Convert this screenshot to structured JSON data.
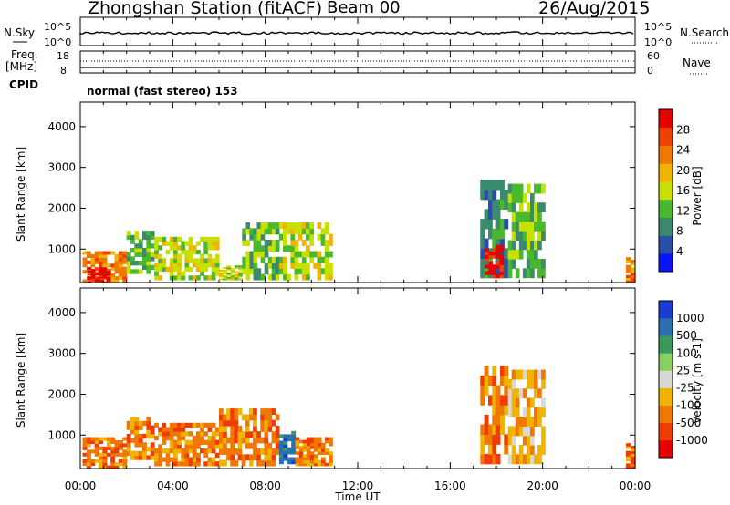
{
  "header": {
    "station": "Zhongshan Station (fitACF)",
    "beam": "Beam 00",
    "date": "26/Aug/2015"
  },
  "strip_labels": {
    "nsky": "N.Sky",
    "nsearch": "N.Search",
    "freq_line1": "Freq.",
    "freq_line2": "[MHz]",
    "nave": "Nave",
    "cpid": "CPID",
    "cpid_value": "normal (fast stereo) 153",
    "noise_ticks": [
      "10^5",
      "10^0"
    ],
    "freq_ticks": [
      "18",
      "8"
    ],
    "nave_ticks": [
      "60",
      "0"
    ]
  },
  "colors": {
    "power_scale": [
      "#0a14ff",
      "#2a4ea8",
      "#3a8a6e",
      "#4ab82c",
      "#c8e000",
      "#f0b400",
      "#f07800",
      "#f04000",
      "#e80000"
    ],
    "velocity_scale": [
      "#e80000",
      "#f03c00",
      "#f07800",
      "#f0b400",
      "#d8d8d8",
      "#8ad060",
      "#3a9a5a",
      "#2a70b0",
      "#1a3cd0"
    ]
  },
  "chart_data": [
    {
      "type": "heatmap",
      "name": "power",
      "ylabel": "Slant Range [km]",
      "yticks": [
        1000,
        2000,
        3000,
        4000
      ],
      "ylim": [
        180,
        4600
      ],
      "xlim": [
        0,
        24
      ],
      "colorbar": {
        "label": "Power [dB]",
        "ticks": [
          "4",
          "8",
          "12",
          "16",
          "20",
          "24",
          "28"
        ]
      },
      "echo_regions": [
        {
          "t0": 0.1,
          "t1": 2.0,
          "r0": 180,
          "r1": 950,
          "level": 6
        },
        {
          "t0": 0.3,
          "t1": 1.3,
          "r0": 180,
          "r1": 550,
          "level": 8
        },
        {
          "t0": 2.0,
          "t1": 3.2,
          "r0": 400,
          "r1": 1450,
          "level": 3
        },
        {
          "t0": 3.2,
          "t1": 6.0,
          "r0": 250,
          "r1": 1300,
          "level": 4
        },
        {
          "t0": 6.0,
          "t1": 7.0,
          "r0": 250,
          "r1": 600,
          "level": 4
        },
        {
          "t0": 7.0,
          "t1": 8.6,
          "r0": 250,
          "r1": 1650,
          "level": 3
        },
        {
          "t0": 8.6,
          "t1": 10.9,
          "r0": 250,
          "r1": 1650,
          "level": 4
        },
        {
          "t0": 17.3,
          "t1": 18.5,
          "r0": 300,
          "r1": 2700,
          "level": 2
        },
        {
          "t0": 17.5,
          "t1": 18.3,
          "r0": 300,
          "r1": 1100,
          "level": 8
        },
        {
          "t0": 18.5,
          "t1": 20.1,
          "r0": 300,
          "r1": 2600,
          "level": 3
        },
        {
          "t0": 23.6,
          "t1": 24.0,
          "r0": 180,
          "r1": 800,
          "level": 6
        }
      ]
    },
    {
      "type": "heatmap",
      "name": "velocity",
      "ylabel": "Slant Range [km]",
      "yticks": [
        1000,
        2000,
        3000,
        4000
      ],
      "ylim": [
        180,
        4600
      ],
      "xlim": [
        0,
        24
      ],
      "xticks": [
        "00:00",
        "04:00",
        "08:00",
        "12:00",
        "16:00",
        "20:00",
        "00:00"
      ],
      "xlabel": "Time UT",
      "colorbar": {
        "label": "Velocity [m s-1]",
        "ticks": [
          "-1000",
          "-500",
          "-100",
          "-25",
          "25",
          "100",
          "500",
          "1000"
        ]
      },
      "echo_regions": [
        {
          "t0": 0.1,
          "t1": 2.0,
          "r0": 180,
          "r1": 950,
          "level": 2
        },
        {
          "t0": 2.0,
          "t1": 3.2,
          "r0": 400,
          "r1": 1450,
          "level": 2
        },
        {
          "t0": 3.2,
          "t1": 6.0,
          "r0": 250,
          "r1": 1300,
          "level": 2
        },
        {
          "t0": 6.0,
          "t1": 8.6,
          "r0": 250,
          "r1": 1650,
          "level": 2
        },
        {
          "t0": 8.6,
          "t1": 9.3,
          "r0": 300,
          "r1": 1100,
          "level": 7
        },
        {
          "t0": 9.3,
          "t1": 10.9,
          "r0": 250,
          "r1": 950,
          "level": 2
        },
        {
          "t0": 17.3,
          "t1": 18.5,
          "r0": 300,
          "r1": 2700,
          "level": 2
        },
        {
          "t0": 18.5,
          "t1": 20.1,
          "r0": 300,
          "r1": 2600,
          "level": 3
        },
        {
          "t0": 23.6,
          "t1": 24.0,
          "r0": 180,
          "r1": 800,
          "level": 2
        }
      ]
    }
  ]
}
